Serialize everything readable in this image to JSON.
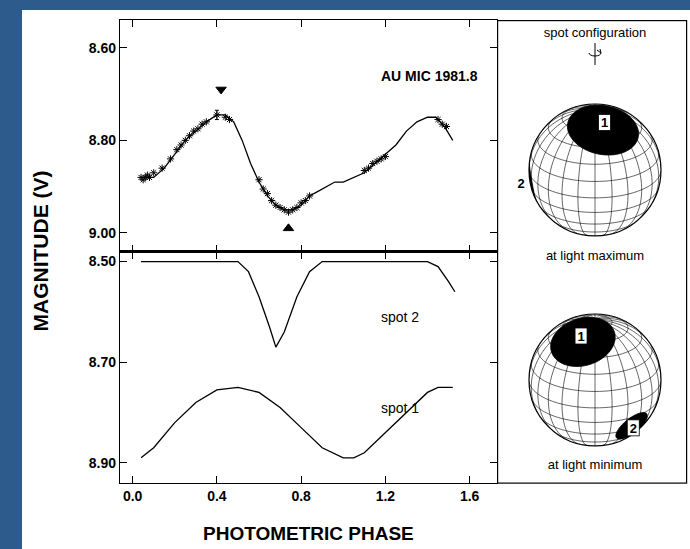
{
  "chart_data": [
    {
      "type": "line",
      "y_label": "MAGNITUDE (V)",
      "xlim": [
        -0.06,
        1.73
      ],
      "xticks": [
        {
          "value": 0,
          "label": "0.0"
        },
        {
          "value": 0.4,
          "label": "0.4"
        },
        {
          "value": 0.8,
          "label": "0.8"
        },
        {
          "value": 1.2,
          "label": "1.2"
        },
        {
          "value": 1.6,
          "label": "1.6"
        }
      ],
      "ylim": [
        9.04,
        8.54
      ],
      "yticks": [
        {
          "value": 8.6,
          "label": "8.60"
        },
        {
          "value": 8.8,
          "label": "8.80"
        },
        {
          "value": 9.0,
          "label": "9.00"
        }
      ],
      "grid": false,
      "tick_labels": "y",
      "annotations": [
        {
          "text": "AU MIC 1981.8",
          "x": 1.41,
          "y": 8.66
        }
      ],
      "series": [
        {
          "type": "line",
          "line_style": "solid",
          "color": "#000000",
          "x": [
            0.04,
            0.1,
            0.15,
            0.2,
            0.25,
            0.3,
            0.35,
            0.4,
            0.44,
            0.48,
            0.52,
            0.56,
            0.6,
            0.64,
            0.68,
            0.72,
            0.76,
            0.8,
            0.84,
            0.88,
            0.92,
            0.96,
            1.0,
            1.05,
            1.1,
            1.15,
            1.2,
            1.25,
            1.3,
            1.35,
            1.4,
            1.44,
            1.48,
            1.52
          ],
          "values": [
            8.88,
            8.88,
            8.86,
            8.83,
            8.8,
            8.78,
            8.76,
            8.745,
            8.745,
            8.76,
            8.8,
            8.85,
            8.89,
            8.92,
            8.94,
            8.95,
            8.95,
            8.94,
            8.92,
            8.91,
            8.9,
            8.89,
            8.89,
            8.88,
            8.87,
            8.85,
            8.83,
            8.81,
            8.78,
            8.76,
            8.75,
            8.75,
            8.77,
            8.8
          ]
        },
        {
          "type": "scatter",
          "marker": "asterisk",
          "color": "#000000",
          "x": [
            0.04,
            0.05,
            0.06,
            0.07,
            0.08,
            0.1,
            0.14,
            0.18,
            0.21,
            0.23,
            0.25,
            0.27,
            0.29,
            0.31,
            0.33,
            0.35,
            0.44,
            0.46,
            0.6,
            0.62,
            0.64,
            0.66,
            0.68,
            0.7,
            0.72,
            0.74,
            0.76,
            0.78,
            0.8,
            0.82,
            0.84,
            1.1,
            1.12,
            1.14,
            1.16,
            1.18,
            1.2,
            1.45,
            1.47,
            1.49
          ],
          "values": [
            8.88,
            8.885,
            8.88,
            8.875,
            8.88,
            8.87,
            8.86,
            8.84,
            8.82,
            8.81,
            8.8,
            8.79,
            8.78,
            8.775,
            8.765,
            8.76,
            8.75,
            8.755,
            8.885,
            8.905,
            8.915,
            8.93,
            8.94,
            8.945,
            8.95,
            8.955,
            8.95,
            8.945,
            8.935,
            8.93,
            8.92,
            8.865,
            8.86,
            8.85,
            8.845,
            8.84,
            8.835,
            8.755,
            8.765,
            8.77
          ]
        },
        {
          "type": "scatter",
          "marker": "asterisk",
          "color": "#000000",
          "x": [
            0.4
          ],
          "values": [
            8.745
          ],
          "errors": [
            0.01
          ]
        },
        {
          "type": "scatter",
          "marker": "triangle-down",
          "color": "#000000",
          "x": [
            0.42
          ],
          "values": [
            8.69
          ]
        },
        {
          "type": "scatter",
          "marker": "triangle-up",
          "color": "#000000",
          "x": [
            0.74
          ],
          "values": [
            8.99
          ]
        }
      ]
    },
    {
      "type": "line",
      "x_label": "PHOTOMETRIC PHASE",
      "xlim": [
        -0.06,
        1.73
      ],
      "xticks": [
        {
          "value": 0,
          "label": "0.0"
        },
        {
          "value": 0.4,
          "label": "0.4"
        },
        {
          "value": 0.8,
          "label": "0.8"
        },
        {
          "value": 1.2,
          "label": "1.2"
        },
        {
          "value": 1.6,
          "label": "1.6"
        }
      ],
      "ylim": [
        8.94,
        8.48
      ],
      "yticks": [
        {
          "value": 8.5,
          "label": "8.50"
        },
        {
          "value": 8.7,
          "label": "8.70"
        },
        {
          "value": 8.9,
          "label": "8.90"
        }
      ],
      "grid": false,
      "tick_labels": true,
      "annotations": [
        {
          "text": "spot 2",
          "x": 1.27,
          "y": 8.61
        },
        {
          "text": "spot 1",
          "x": 1.27,
          "y": 8.79
        }
      ],
      "series": [
        {
          "type": "line",
          "line_style": "solid",
          "color": "#000000",
          "x": [
            0.04,
            0.5,
            0.55,
            0.6,
            0.65,
            0.68,
            0.72,
            0.78,
            0.84,
            0.9,
            1.4,
            1.45,
            1.5,
            1.53
          ],
          "values": [
            8.5,
            8.5,
            8.52,
            8.57,
            8.63,
            8.67,
            8.64,
            8.57,
            8.52,
            8.5,
            8.5,
            8.51,
            8.54,
            8.56
          ]
        },
        {
          "type": "line",
          "line_style": "solid",
          "color": "#000000",
          "x": [
            0.04,
            0.1,
            0.2,
            0.3,
            0.4,
            0.5,
            0.6,
            0.7,
            0.8,
            0.9,
            1.0,
            1.05,
            1.1,
            1.2,
            1.3,
            1.4,
            1.45,
            1.52
          ],
          "values": [
            8.89,
            8.87,
            8.82,
            8.78,
            8.755,
            8.75,
            8.76,
            8.79,
            8.83,
            8.87,
            8.89,
            8.89,
            8.88,
            8.84,
            8.8,
            8.76,
            8.75,
            8.75
          ]
        }
      ]
    }
  ],
  "spot_configuration": {
    "title": "spot configuration",
    "panels": [
      {
        "caption": "at light maximum",
        "spots": [
          {
            "label": "1"
          },
          {
            "label": "2"
          }
        ]
      },
      {
        "caption": "at light minimum",
        "spots": [
          {
            "label": "1"
          },
          {
            "label": "2"
          }
        ]
      }
    ]
  }
}
